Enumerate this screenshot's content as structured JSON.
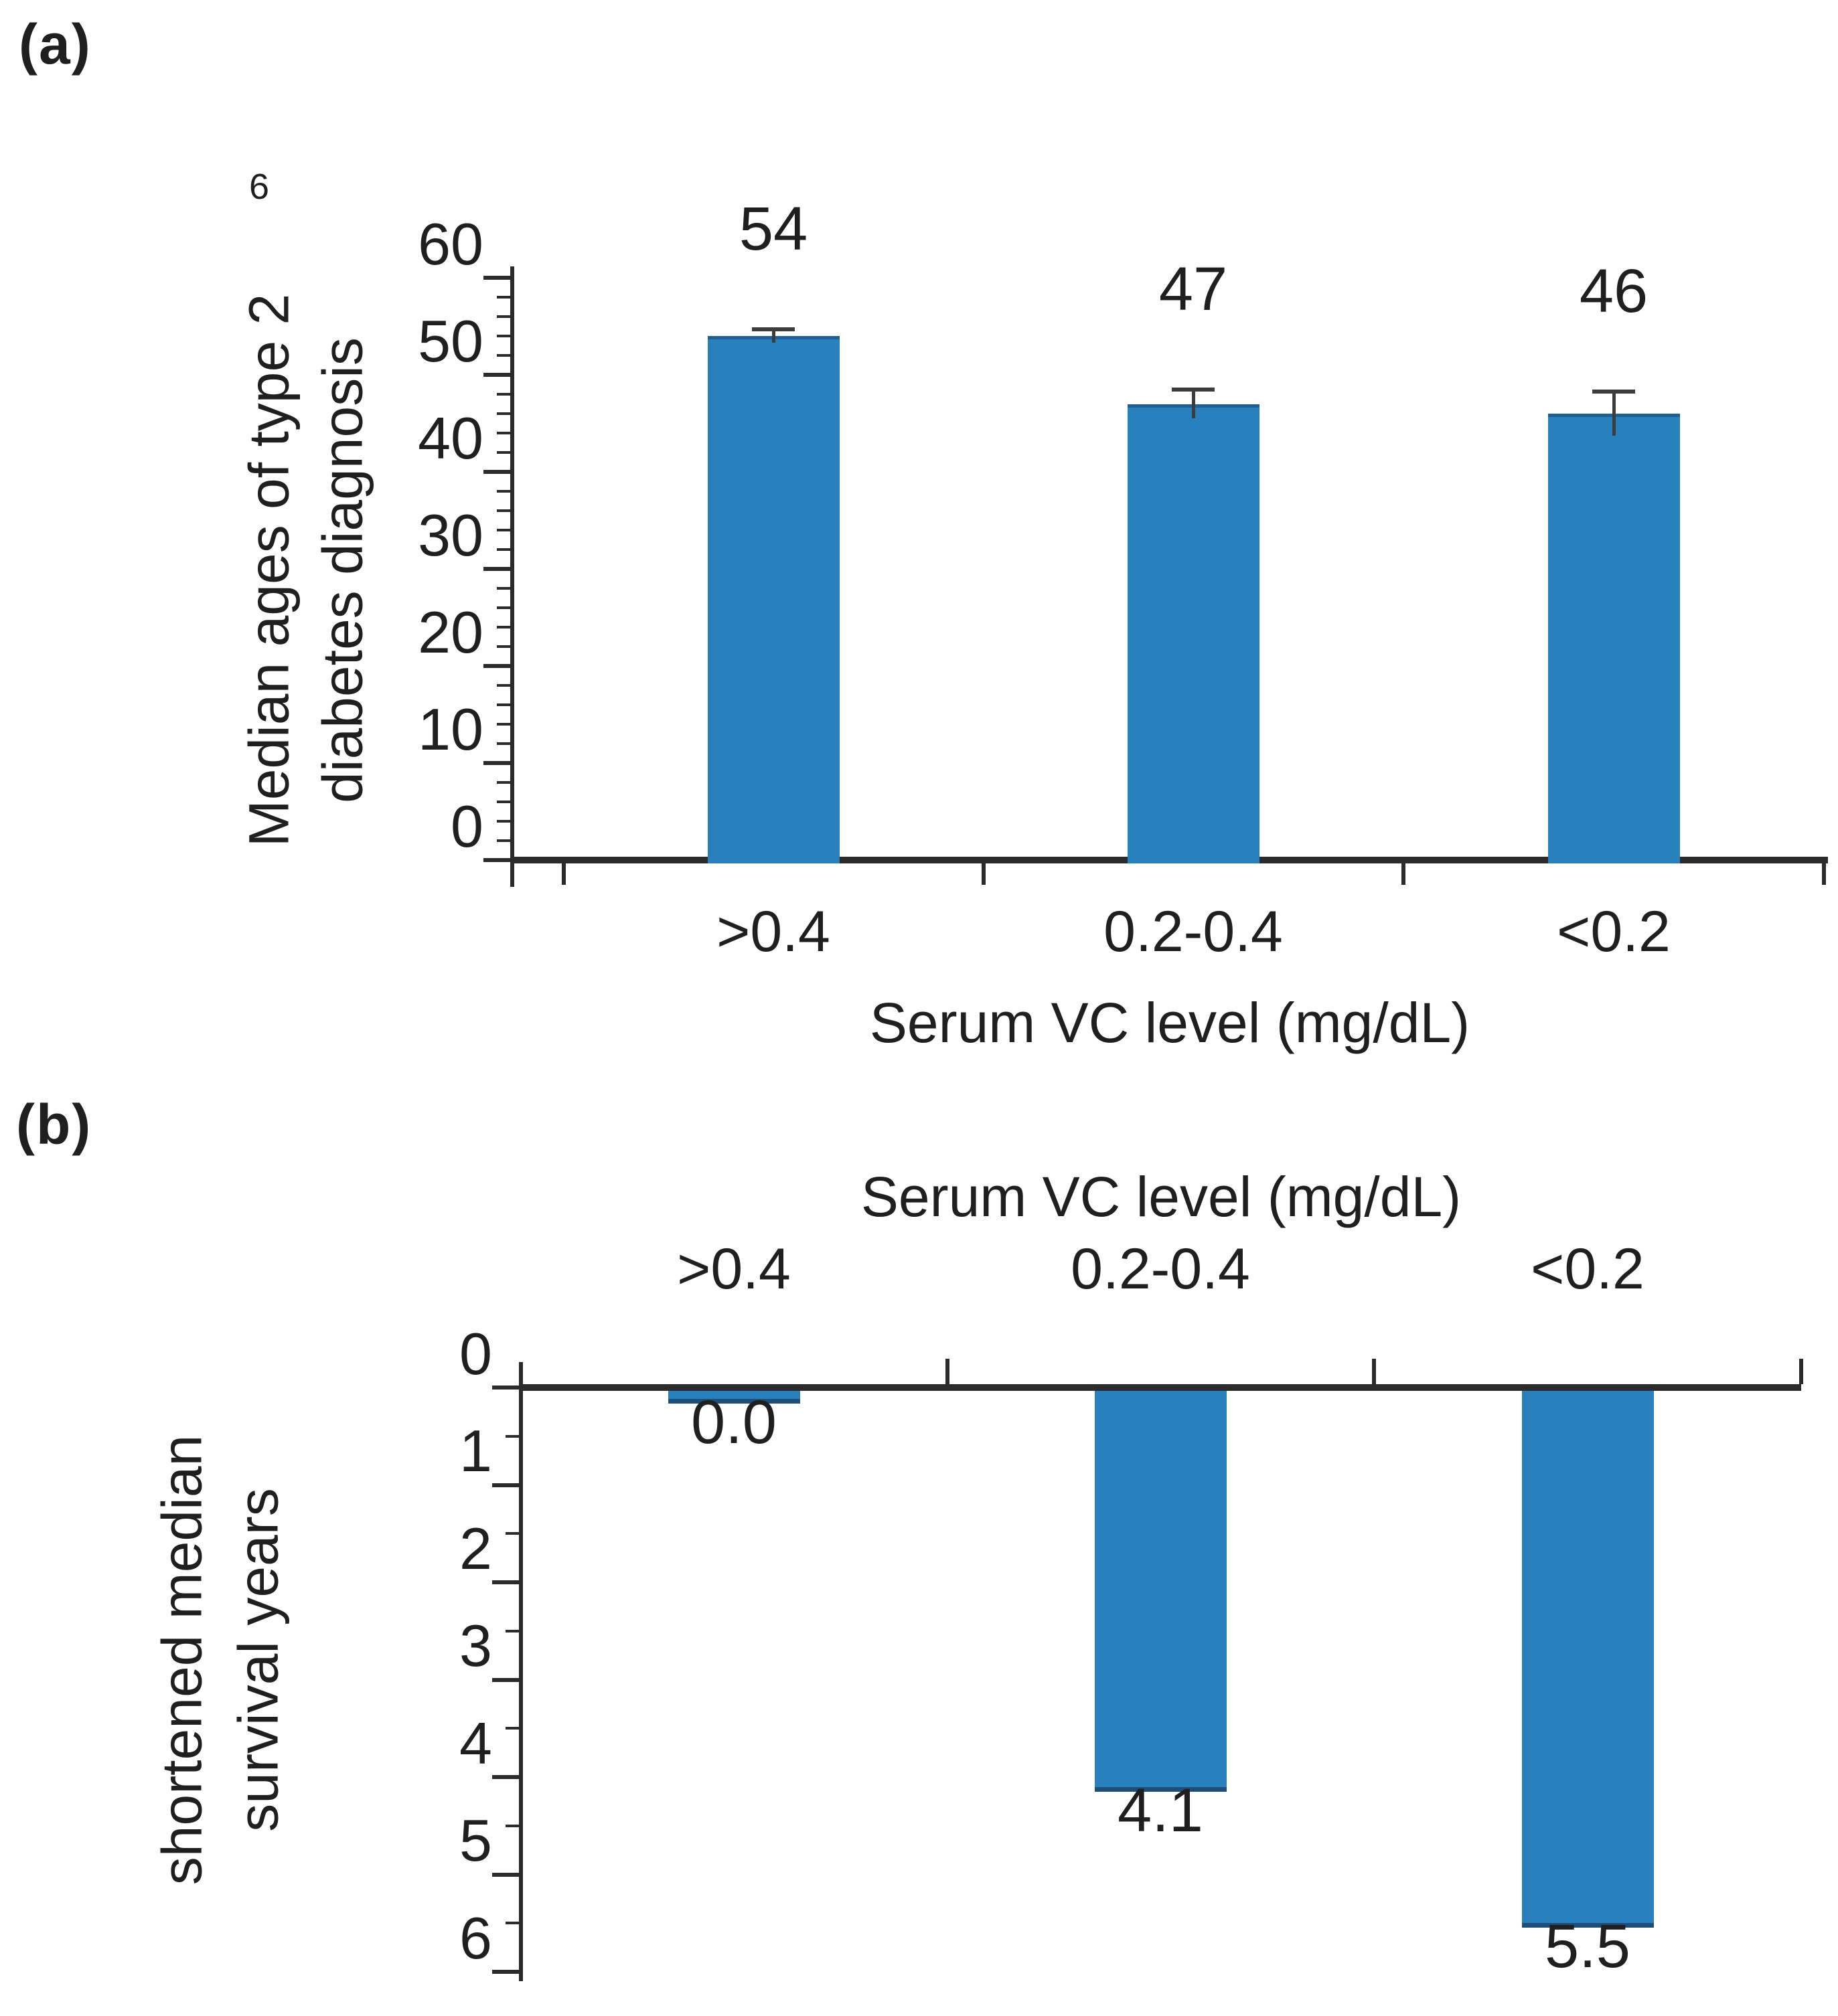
{
  "figure": {
    "panel_a_tag": "(a)",
    "panel_b_tag": "(b)",
    "stray_char": "6"
  },
  "colors": {
    "bar": "#2880BD",
    "bar_dark_edge": "#1F4E79",
    "bar_top_edge": "rgba(23,55,94,0.45)",
    "axis": "#2b2b2b",
    "error": "#3c3c3c",
    "text": "#1f1f1f"
  },
  "chart_data": [
    {
      "id": "a",
      "type": "bar",
      "orientation": "up",
      "title": "",
      "xlabel": "Serum VC level (mg/dL)",
      "ylabel_lines": [
        "Median ages of type 2",
        "diabetes diagnosis"
      ],
      "categories": [
        ">0.4",
        "0.2-0.4",
        "<0.2"
      ],
      "values": [
        54,
        47,
        46
      ],
      "errors": [
        0.7,
        1.5,
        2.3
      ],
      "bar_labels": [
        "54",
        "47",
        "46"
      ],
      "ylim": [
        0,
        60
      ],
      "y_major_ticks": [
        0,
        10,
        20,
        30,
        40,
        50,
        60
      ],
      "y_minor_step": 2,
      "grid": false,
      "legend": null
    },
    {
      "id": "b",
      "type": "bar",
      "orientation": "down",
      "title": "Serum VC level (mg/dL)",
      "title_position": "top",
      "xlabel": "",
      "ylabel_lines": [
        "shortened median",
        "survival years"
      ],
      "categories": [
        ">0.4",
        "0.2-0.4",
        "<0.2"
      ],
      "values": [
        0.0,
        4.1,
        5.5
      ],
      "errors": null,
      "bar_labels": [
        "0.0",
        "4.1",
        "5.5"
      ],
      "ylim": [
        0,
        6
      ],
      "y_major_ticks": [
        0,
        1,
        2,
        3,
        4,
        5,
        6
      ],
      "y_minor_step": 0.5,
      "grid": false,
      "legend": null
    }
  ]
}
